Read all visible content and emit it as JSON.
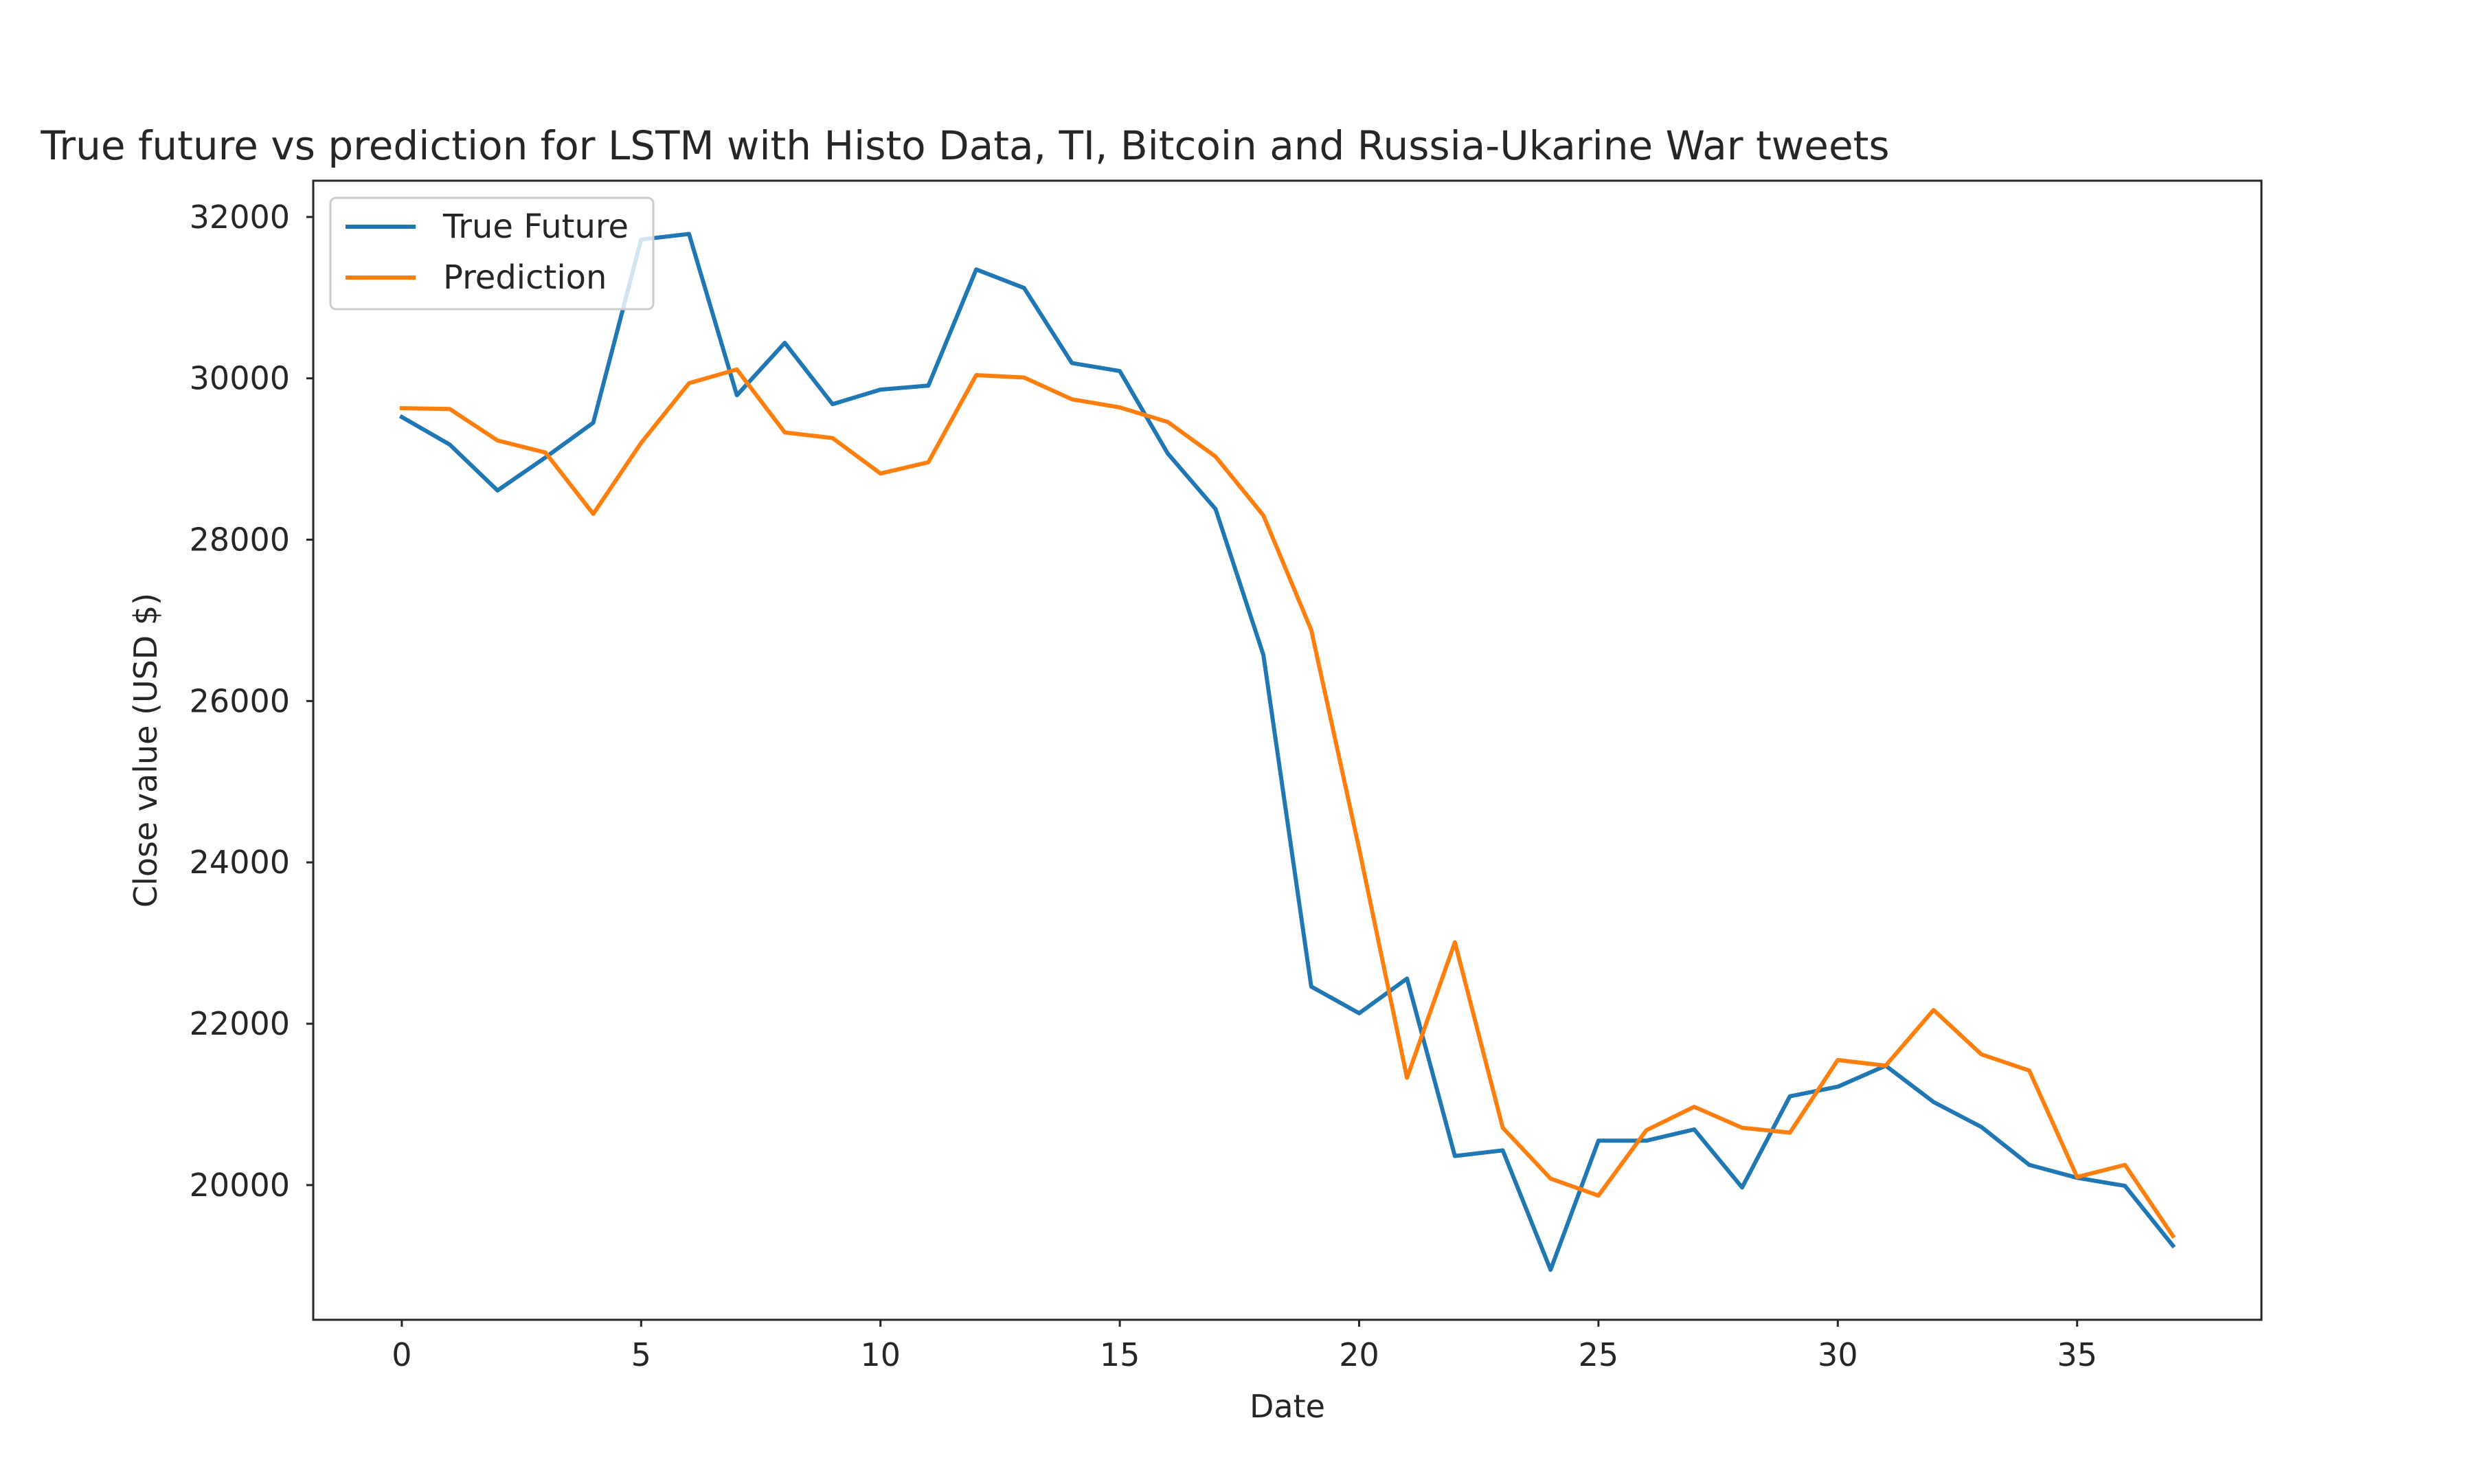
{
  "chart_data": {
    "type": "line",
    "title": "True future vs prediction for LSTM with Histo Data, TI, Bitcoin and Russia-Ukarine War tweets",
    "xlabel": "Date",
    "ylabel": "Close value (USD $)",
    "xlim": [
      -1.85,
      38.85
    ],
    "ylim": [
      18330,
      32450
    ],
    "x_ticks": [
      0,
      5,
      10,
      15,
      20,
      25,
      30,
      35
    ],
    "y_ticks": [
      20000,
      22000,
      24000,
      26000,
      28000,
      30000,
      32000
    ],
    "grid": false,
    "legend_position": "upper left",
    "x": [
      0,
      1,
      2,
      3,
      4,
      5,
      6,
      7,
      8,
      9,
      10,
      11,
      12,
      13,
      14,
      15,
      16,
      17,
      18,
      19,
      20,
      21,
      22,
      23,
      24,
      25,
      26,
      27,
      28,
      29,
      30,
      31,
      32,
      33,
      34,
      35,
      36,
      37
    ],
    "series": [
      {
        "name": "True Future",
        "color": "#1f77b4",
        "values": [
          29520,
          29180,
          28610,
          29020,
          29450,
          31720,
          31790,
          29790,
          30440,
          29680,
          29860,
          29910,
          31350,
          31120,
          30190,
          30090,
          29070,
          28380,
          26570,
          22460,
          22130,
          22560,
          20360,
          20430,
          18950,
          20550,
          20550,
          20690,
          19970,
          21100,
          21220,
          21480,
          21030,
          20720,
          20250,
          20090,
          19990,
          19250
        ]
      },
      {
        "name": "Prediction",
        "color": "#ff7f0e",
        "values": [
          29630,
          29620,
          29230,
          29080,
          28320,
          29200,
          29940,
          30110,
          29330,
          29260,
          28820,
          28960,
          30040,
          30010,
          29740,
          29640,
          29460,
          29030,
          28300,
          26880,
          24170,
          21330,
          23010,
          20710,
          20080,
          19870,
          20680,
          20970,
          20710,
          20650,
          21550,
          21480,
          22170,
          21620,
          21420,
          20100,
          20250,
          19370
        ]
      }
    ]
  }
}
